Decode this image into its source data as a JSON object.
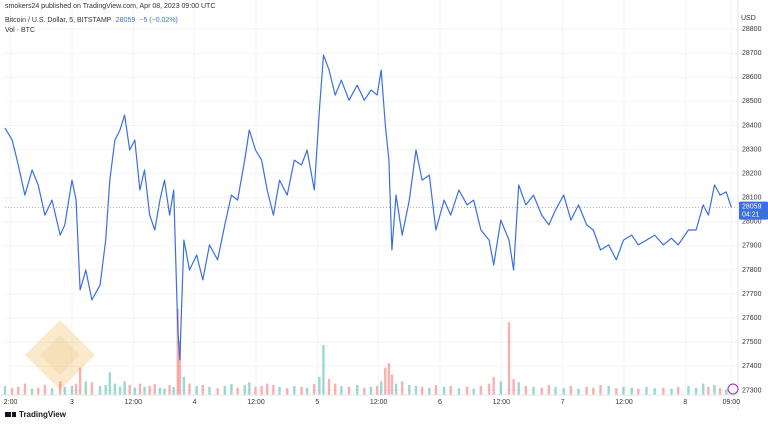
{
  "header": "smokers24 published on TradingView.com, Apr 08, 2023 09:00 UTC",
  "brand": "TradingView",
  "chart_data": {
    "type": "line",
    "currency": "USD",
    "x": [
      -13.1,
      -11.7,
      -10.5,
      -9.2,
      -7.8,
      -6.6,
      -5.3,
      -3.9,
      -2.3,
      -1.4,
      0,
      0.8,
      1.6,
      2.7,
      3.9,
      5.5,
      6.6,
      7.4,
      8.4,
      9.4,
      10.3,
      11.3,
      12.3,
      13.3,
      14.2,
      15.2,
      16.2,
      17.2,
      18.1,
      19.1,
      19.9,
      20.7,
      21.1,
      21.9,
      23.0,
      24.4,
      25.6,
      26.9,
      28.5,
      29.9,
      31.2,
      32.4,
      33.8,
      34.7,
      35.9,
      37.1,
      38.2,
      39.4,
      40.6,
      42.1,
      43.5,
      44.9,
      46.0,
      47.4,
      48.4,
      49.2,
      50.3,
      51.5,
      52.7,
      54.2,
      55.8,
      57.2,
      58.5,
      59.7,
      60.5,
      61.3,
      62.0,
      62.6,
      63.4,
      64.6,
      66.0,
      67.3,
      68.5,
      69.9,
      71.2,
      72.8,
      74.1,
      75.7,
      77.3,
      78.6,
      80.0,
      81.6,
      82.5,
      83.9,
      85.5,
      86.4,
      87.4,
      88.8,
      90.3,
      91.9,
      93.3,
      94.6,
      96.2,
      97.6,
      99.1,
      100.7,
      102.0,
      103.4,
      105.0,
      106.5,
      107.9,
      109.5,
      110.8,
      112.4,
      114.0,
      115.7,
      117.3,
      118.6,
      120.6,
      122.1,
      123.5,
      124.5,
      125.7,
      126.8,
      128.0,
      129.0
    ],
    "series": [
      {
        "name": "Bitcoin / U.S. Dollar, 5, BITSTAMP",
        "color": "#3b6fe0",
        "values": [
          28389,
          28339,
          28236,
          28111,
          28215,
          28153,
          28028,
          28090,
          27945,
          27987,
          28173,
          28090,
          27717,
          27800,
          27676,
          27738,
          27924,
          28173,
          28339,
          28381,
          28443,
          28298,
          28339,
          28132,
          28215,
          28028,
          27966,
          28090,
          28173,
          28028,
          28132,
          27551,
          27427,
          27924,
          27800,
          27862,
          27759,
          27904,
          27842,
          27987,
          28111,
          28090,
          28256,
          28381,
          28298,
          28256,
          28132,
          28028,
          28173,
          28111,
          28256,
          28236,
          28298,
          28132,
          28464,
          28692,
          28630,
          28526,
          28588,
          28505,
          28567,
          28505,
          28547,
          28526,
          28630,
          28402,
          28256,
          27883,
          28111,
          27945,
          28090,
          28298,
          28173,
          28194,
          27966,
          28090,
          28028,
          28132,
          28070,
          28090,
          27966,
          27924,
          27821,
          28007,
          27924,
          27800,
          28153,
          28070,
          28111,
          28028,
          27987,
          28049,
          28111,
          28007,
          28070,
          27987,
          27966,
          27883,
          27904,
          27842,
          27924,
          27945,
          27904,
          27924,
          27945,
          27904,
          27932,
          27904,
          27966,
          27966,
          28070,
          28028,
          28153,
          28111,
          28124,
          28059
        ]
      }
    ],
    "last_price": 28059,
    "change_label": "−5 (−0.02%)",
    "countdown": "04:21",
    "volume": {
      "name": "Vol · BTC",
      "up_color": "#26a69a",
      "down_color": "#ef5350",
      "vlim": [
        0,
        220
      ],
      "values": [
        20,
        15,
        18,
        25,
        14,
        16,
        22,
        15,
        30,
        18,
        20,
        25,
        60,
        30,
        28,
        20,
        22,
        50,
        25,
        18,
        30,
        22,
        16,
        25,
        18,
        20,
        24,
        16,
        14,
        22,
        18,
        190,
        120,
        40,
        25,
        20,
        22,
        18,
        15,
        20,
        24,
        16,
        22,
        28,
        18,
        20,
        25,
        22,
        18,
        15,
        20,
        18,
        16,
        24,
        40,
        110,
        35,
        25,
        20,
        18,
        22,
        16,
        18,
        20,
        30,
        60,
        70,
        45,
        25,
        30,
        22,
        20,
        18,
        16,
        22,
        18,
        20,
        15,
        18,
        14,
        20,
        25,
        40,
        30,
        160,
        35,
        28,
        20,
        18,
        16,
        22,
        18,
        15,
        20,
        14,
        18,
        16,
        22,
        20,
        15,
        18,
        16,
        14,
        18,
        15,
        16,
        14,
        18,
        20,
        16,
        25,
        18,
        22,
        15,
        12,
        0
      ]
    },
    "ylim": [
      27281,
      28871
    ],
    "yticks": [
      27300,
      27400,
      27500,
      27600,
      27700,
      27800,
      27900,
      28000,
      28100,
      28200,
      28300,
      28400,
      28500,
      28600,
      28700,
      28800
    ],
    "xlim": [
      -13.1,
      130.3
    ],
    "xticks": [
      {
        "value": -12,
        "label": "2:00"
      },
      {
        "value": 0,
        "label": "3"
      },
      {
        "value": 12,
        "label": "12:00"
      },
      {
        "value": 24,
        "label": "4"
      },
      {
        "value": 36,
        "label": "12:00"
      },
      {
        "value": 48,
        "label": "5"
      },
      {
        "value": 60,
        "label": "12:00"
      },
      {
        "value": 72,
        "label": "6"
      },
      {
        "value": 84,
        "label": "12:00"
      },
      {
        "value": 96,
        "label": "7"
      },
      {
        "value": 108,
        "label": "12:00"
      },
      {
        "value": 120,
        "label": "8"
      },
      {
        "value": 129,
        "label": "09:00"
      }
    ],
    "grid": true
  }
}
